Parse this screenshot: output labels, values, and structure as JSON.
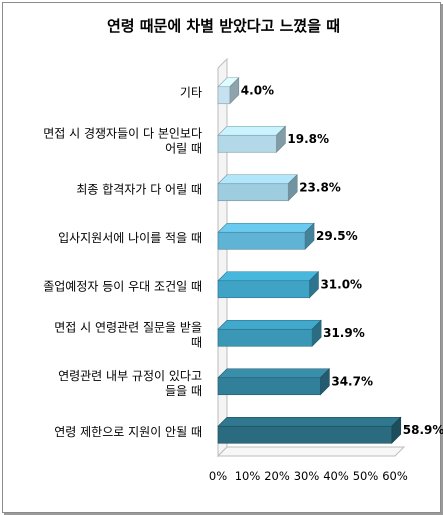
{
  "chart_data": {
    "type": "bar",
    "orientation": "horizontal",
    "title": "연령 때문에 차별 받았다고 느꼈을 때",
    "categories": [
      [
        "기타"
      ],
      [
        "면접 시 경쟁자들이 다 본인보다",
        "어릴 때"
      ],
      [
        "최종 합격자가 다 어릴 때"
      ],
      [
        "입사지원서에 나이를 적을 때"
      ],
      [
        "졸업예정자 등이 우대 조건일 때"
      ],
      [
        "면접 시 연령관련 질문을 받을",
        "때"
      ],
      [
        "연령관련 내부 규정이 있다고",
        "들을 때"
      ],
      [
        "연령 제한으로 지원이 안될 때"
      ]
    ],
    "values": [
      4.0,
      19.8,
      23.8,
      29.5,
      31.0,
      31.9,
      34.7,
      58.9
    ],
    "value_labels": [
      "4.0%",
      "19.8%",
      "23.8%",
      "29.5%",
      "31.0%",
      "31.9%",
      "34.7%",
      "58.9%"
    ],
    "x_ticks": [
      "0%",
      "10%",
      "20%",
      "30%",
      "40%",
      "50%",
      "60%"
    ],
    "xlim": [
      0,
      60
    ],
    "bar_colors": [
      "#c6e2f0",
      "#b3d9e8",
      "#9fcde0",
      "#5fb4d6",
      "#3fa3c6",
      "#3a98b6",
      "#327f99",
      "#2a6b80"
    ],
    "grid": false,
    "legend": "none"
  }
}
